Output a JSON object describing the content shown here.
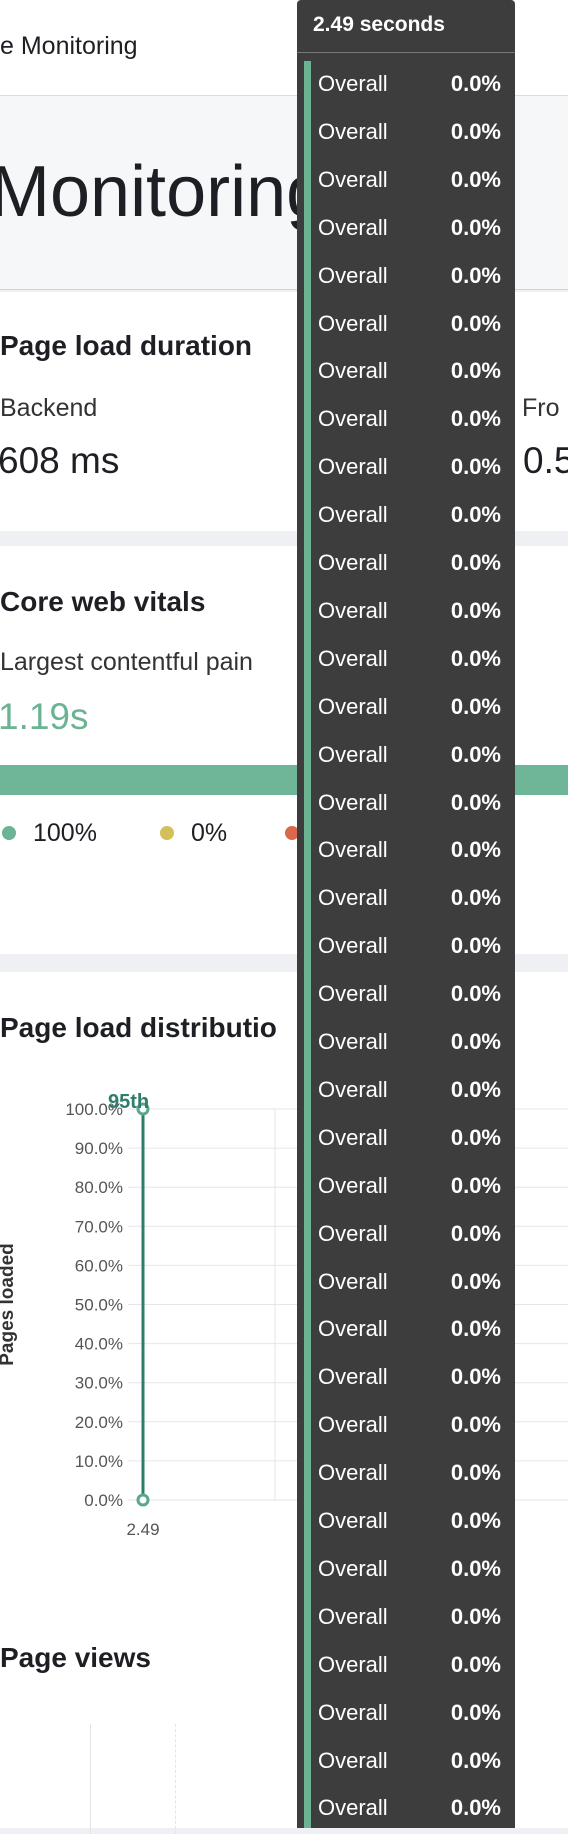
{
  "header": {
    "title": "e Monitoring"
  },
  "page_title": "Monitoring",
  "page_load_duration": {
    "title": "Page load duration",
    "metrics": [
      {
        "label": "Backend",
        "value": "608 ms"
      },
      {
        "label": "Fro",
        "value": "0.5"
      }
    ]
  },
  "core_web_vitals": {
    "title": "Core web vitals",
    "metric": {
      "label": "Largest contentful pain",
      "value": "1.19s"
    },
    "legend": [
      {
        "label": "100%",
        "color": "#6bb393"
      },
      {
        "label": "0%",
        "color": "#d4c05a"
      },
      {
        "label": "",
        "color": "#d9694a"
      }
    ]
  },
  "distribution": {
    "title": "Page load distributio",
    "chart_data": {
      "type": "line",
      "y_label": "Pages loaded",
      "annotation": "95th",
      "x": [
        2.49,
        2.49
      ],
      "values": [
        0,
        100
      ],
      "color": "#2e7d6b",
      "xticks": [
        {
          "value": 2.49,
          "label": "2.49"
        }
      ],
      "ylim": [
        0,
        100
      ],
      "yticks": [
        {
          "value": 0,
          "label": "0.0%"
        },
        {
          "value": 10,
          "label": "10.0%"
        },
        {
          "value": 20,
          "label": "20.0%"
        },
        {
          "value": 30,
          "label": "30.0%"
        },
        {
          "value": 40,
          "label": "40.0%"
        },
        {
          "value": 50,
          "label": "50.0%"
        },
        {
          "value": 60,
          "label": "60.0%"
        },
        {
          "value": 70,
          "label": "70.0%"
        },
        {
          "value": 80,
          "label": "80.0%"
        },
        {
          "value": 90,
          "label": "90.0%"
        },
        {
          "value": 100,
          "label": "100.0%"
        }
      ],
      "grid": true
    }
  },
  "page_views": {
    "title": "Page views"
  },
  "tooltip": {
    "title": "2.49 seconds",
    "rows": [
      {
        "label": "Overall",
        "value": "0.0%"
      },
      {
        "label": "Overall",
        "value": "0.0%"
      },
      {
        "label": "Overall",
        "value": "0.0%"
      },
      {
        "label": "Overall",
        "value": "0.0%"
      },
      {
        "label": "Overall",
        "value": "0.0%"
      },
      {
        "label": "Overall",
        "value": "0.0%"
      },
      {
        "label": "Overall",
        "value": "0.0%"
      },
      {
        "label": "Overall",
        "value": "0.0%"
      },
      {
        "label": "Overall",
        "value": "0.0%"
      },
      {
        "label": "Overall",
        "value": "0.0%"
      },
      {
        "label": "Overall",
        "value": "0.0%"
      },
      {
        "label": "Overall",
        "value": "0.0%"
      },
      {
        "label": "Overall",
        "value": "0.0%"
      },
      {
        "label": "Overall",
        "value": "0.0%"
      },
      {
        "label": "Overall",
        "value": "0.0%"
      },
      {
        "label": "Overall",
        "value": "0.0%"
      },
      {
        "label": "Overall",
        "value": "0.0%"
      },
      {
        "label": "Overall",
        "value": "0.0%"
      },
      {
        "label": "Overall",
        "value": "0.0%"
      },
      {
        "label": "Overall",
        "value": "0.0%"
      },
      {
        "label": "Overall",
        "value": "0.0%"
      },
      {
        "label": "Overall",
        "value": "0.0%"
      },
      {
        "label": "Overall",
        "value": "0.0%"
      },
      {
        "label": "Overall",
        "value": "0.0%"
      },
      {
        "label": "Overall",
        "value": "0.0%"
      },
      {
        "label": "Overall",
        "value": "0.0%"
      },
      {
        "label": "Overall",
        "value": "0.0%"
      },
      {
        "label": "Overall",
        "value": "0.0%"
      },
      {
        "label": "Overall",
        "value": "0.0%"
      },
      {
        "label": "Overall",
        "value": "0.0%"
      },
      {
        "label": "Overall",
        "value": "0.0%"
      },
      {
        "label": "Overall",
        "value": "0.0%"
      },
      {
        "label": "Overall",
        "value": "0.0%"
      },
      {
        "label": "Overall",
        "value": "0.0%"
      },
      {
        "label": "Overall",
        "value": "0.0%"
      },
      {
        "label": "Overall",
        "value": "0.0%"
      },
      {
        "label": "Overall",
        "value": "0.0%"
      }
    ]
  }
}
